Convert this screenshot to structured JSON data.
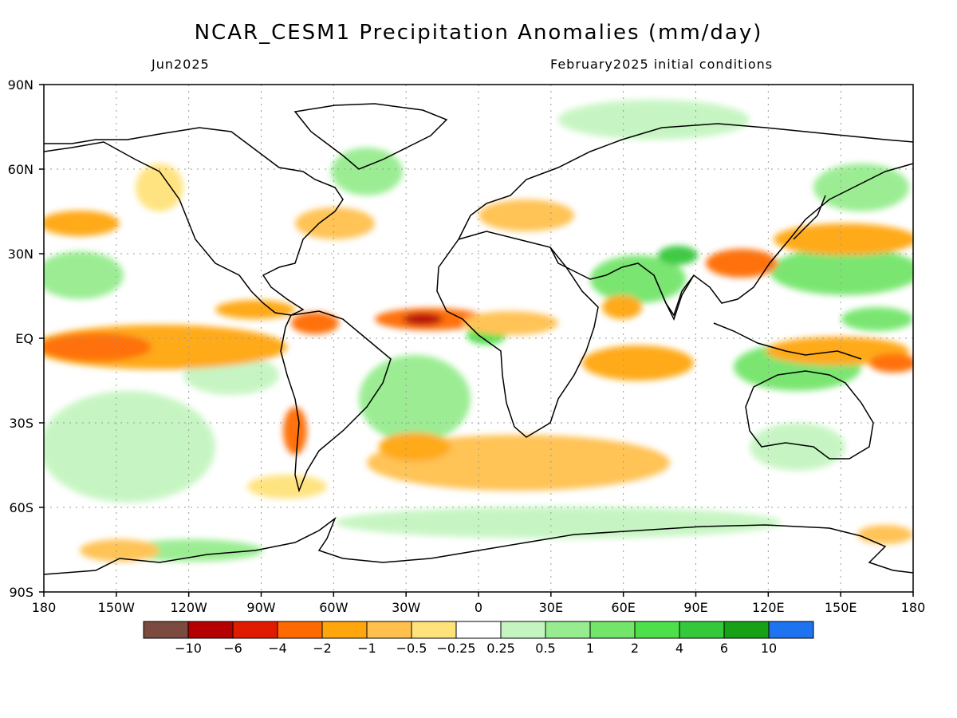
{
  "title": "NCAR_CESM1 Precipitation Anomalies (mm/day)",
  "valid_month": "Jun2025",
  "initial_conditions": "February2025 initial conditions",
  "lat_labels": [
    "90N",
    "60N",
    "30N",
    "EQ",
    "30S",
    "60S",
    "90S"
  ],
  "lon_labels": [
    "180",
    "150W",
    "120W",
    "90W",
    "60W",
    "30W",
    "0",
    "30E",
    "60E",
    "90E",
    "120E",
    "150E",
    "180"
  ],
  "colorbar": {
    "colors": [
      "#7a4b3e",
      "#b50000",
      "#e01c00",
      "#ff6a00",
      "#ffa60d",
      "#ffc04d",
      "#ffe27a",
      "#ffffff",
      "#c4f5c0",
      "#96ec8e",
      "#73e56a",
      "#4ee04a",
      "#35c83a",
      "#16a117",
      "#1e73f0"
    ],
    "labels": [
      "−10",
      "−6",
      "−4",
      "−2",
      "−1",
      "−0.5",
      "−0.25",
      "0.25",
      "0.5",
      "1",
      "2",
      "4",
      "6",
      "10"
    ]
  }
}
